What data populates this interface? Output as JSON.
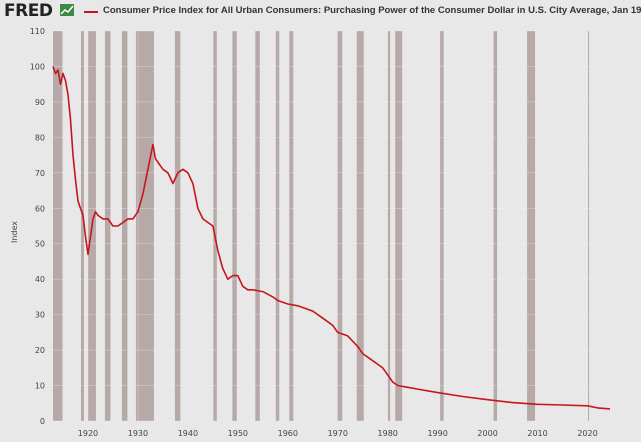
{
  "header": {
    "logo": "FRED",
    "logo_icon": "chart-line-icon"
  },
  "colors": {
    "series": "#c4161c",
    "recession": "#b8a9a9",
    "background": "#e8e8e8",
    "grid": "#f2f2f2"
  },
  "chart_data": {
    "type": "line",
    "title": "",
    "xlabel": "",
    "ylabel": "Index",
    "xlim": [
      1913,
      2024.5
    ],
    "ylim": [
      0,
      110
    ],
    "yticks": [
      0,
      10,
      20,
      30,
      40,
      50,
      60,
      70,
      80,
      90,
      100,
      110
    ],
    "xticks": [
      1920,
      1930,
      1940,
      1950,
      1960,
      1970,
      1980,
      1990,
      2000,
      2010,
      2020
    ],
    "grid": true,
    "legend": "top-left",
    "series": [
      {
        "name": "Consumer Price Index for All Urban Consumers: Purchasing Power of the Consumer Dollar in U.S. City Average, Jan 19",
        "x": [
          1913,
          1913.5,
          1914,
          1914.5,
          1915,
          1915.5,
          1916,
          1916.5,
          1917,
          1917.5,
          1918,
          1918.5,
          1919,
          1919.5,
          1920,
          1920.5,
          1921,
          1921.5,
          1922,
          1923,
          1924,
          1925,
          1926,
          1927,
          1928,
          1929,
          1930,
          1931,
          1932,
          1933,
          1933.5,
          1934,
          1935,
          1936,
          1937,
          1938,
          1939,
          1940,
          1941,
          1942,
          1943,
          1944,
          1945,
          1946,
          1947,
          1948,
          1949,
          1950,
          1951,
          1952,
          1953,
          1955,
          1957,
          1958,
          1960,
          1962,
          1965,
          1967,
          1969,
          1970,
          1972,
          1974,
          1975,
          1977,
          1979,
          1980,
          1981,
          1982,
          1984,
          1986,
          1990,
          1995,
          2000,
          2005,
          2010,
          2015,
          2020,
          2022,
          2024.5
        ],
        "values": [
          100,
          98,
          99,
          95,
          98,
          96,
          92,
          85,
          75,
          68,
          62,
          60,
          58,
          52,
          47,
          52,
          57,
          59,
          58,
          57,
          57,
          55,
          55,
          56,
          57,
          57,
          59,
          64,
          71,
          78,
          74,
          73,
          71,
          70,
          67,
          70,
          71,
          70,
          67,
          60,
          57,
          56,
          55,
          48,
          43,
          40,
          41,
          41,
          38,
          37,
          37,
          36.5,
          35,
          34,
          33,
          32.5,
          31,
          29,
          27,
          25,
          24,
          21,
          19,
          17,
          15,
          13,
          11,
          10,
          9.5,
          9,
          8,
          6.9,
          6.0,
          5.2,
          4.7,
          4.5,
          4.3,
          3.7,
          3.4
        ]
      }
    ],
    "recessions": [
      [
        1913.0,
        1914.9
      ],
      [
        1918.6,
        1919.2
      ],
      [
        1920.0,
        1921.6
      ],
      [
        1923.4,
        1924.5
      ],
      [
        1926.8,
        1927.9
      ],
      [
        1929.6,
        1933.2
      ],
      [
        1937.4,
        1938.5
      ],
      [
        1945.1,
        1945.8
      ],
      [
        1948.9,
        1949.8
      ],
      [
        1953.5,
        1954.4
      ],
      [
        1957.6,
        1958.3
      ],
      [
        1960.3,
        1961.1
      ],
      [
        1969.9,
        1970.9
      ],
      [
        1973.8,
        1975.2
      ],
      [
        1980.0,
        1980.5
      ],
      [
        1981.5,
        1982.9
      ],
      [
        1990.5,
        1991.2
      ],
      [
        2001.2,
        2001.9
      ],
      [
        2007.9,
        2009.5
      ],
      [
        2020.1,
        2020.3
      ]
    ]
  }
}
